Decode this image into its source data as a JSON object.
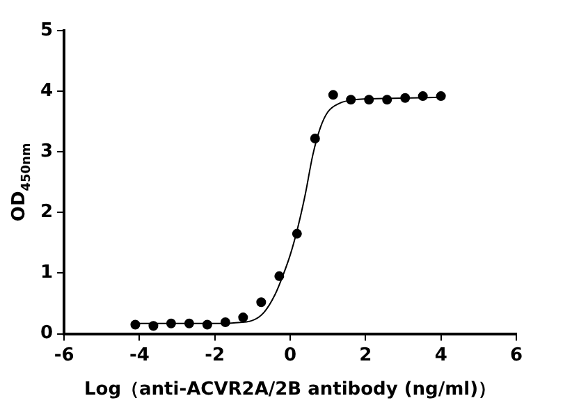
{
  "chart_data": {
    "type": "scatter",
    "xlabel": "Log（anti-ACVR2A/2B antibody (ng/ml)）",
    "ylabel": "OD$_{450nm}$",
    "xlim": [
      -6,
      6
    ],
    "xticks": [
      -6,
      -4,
      -2,
      0,
      2,
      4,
      6
    ],
    "ylim": [
      0,
      5
    ],
    "yticks": [
      0,
      1,
      2,
      3,
      4,
      5
    ],
    "grid": false,
    "legend": false,
    "marker": "circle",
    "series": [
      {
        "color": "#000000",
        "x": [
          -4.11,
          -3.63,
          -3.16,
          -2.68,
          -2.2,
          -1.72,
          -1.25,
          -0.77,
          -0.29,
          0.18,
          0.66,
          1.14,
          1.61,
          2.09,
          2.57,
          3.05,
          3.52,
          4.0
        ],
        "values": [
          0.15,
          0.13,
          0.17,
          0.17,
          0.15,
          0.19,
          0.27,
          0.52,
          0.95,
          1.65,
          3.22,
          3.94,
          3.86,
          3.86,
          3.86,
          3.89,
          3.92,
          3.92
        ]
      },
      {
        "type": "line",
        "color": "#000000",
        "marker": "none",
        "x": [
          -4.1,
          -2,
          -1.5,
          -1,
          -0.7,
          -0.4,
          -0.2,
          0,
          0.2,
          0.4,
          0.6,
          0.8,
          1.0,
          1.3,
          1.7,
          2.5,
          4
        ],
        "values": [
          0.17,
          0.17,
          0.18,
          0.22,
          0.35,
          0.65,
          0.95,
          1.3,
          1.75,
          2.3,
          2.95,
          3.4,
          3.66,
          3.8,
          3.86,
          3.88,
          3.9
        ]
      }
    ]
  }
}
